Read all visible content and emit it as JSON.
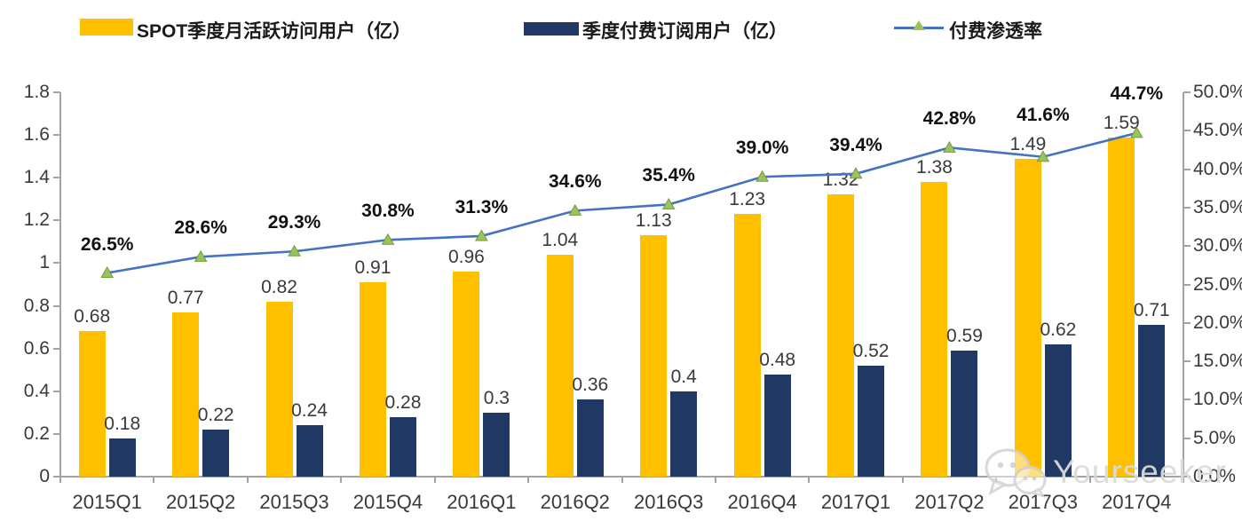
{
  "legend": [
    {
      "label": "SPOT季度月活跃访问用户（亿）",
      "swatch": "bar",
      "color": "#FFC000"
    },
    {
      "label": "季度付费订阅用户（亿）",
      "swatch": "bar",
      "color": "#1F3864"
    },
    {
      "label": "付费渗透率",
      "swatch": "line",
      "color": "#4472C4",
      "marker_color": "#9CC25C"
    }
  ],
  "chart_data": {
    "type": "bar",
    "subtype": "grouped bars with overlay line (dual axis)",
    "categories": [
      "2015Q1",
      "2015Q2",
      "2015Q3",
      "2015Q4",
      "2016Q1",
      "2016Q2",
      "2016Q3",
      "2016Q4",
      "2017Q1",
      "2017Q2",
      "2017Q3",
      "2017Q4"
    ],
    "series": [
      {
        "name": "SPOT季度月活跃访问用户（亿）",
        "type": "bar",
        "axis": "left",
        "color": "#FFC000",
        "values": [
          0.68,
          0.77,
          0.82,
          0.91,
          0.96,
          1.04,
          1.13,
          1.23,
          1.32,
          1.38,
          1.49,
          1.59
        ]
      },
      {
        "name": "季度付费订阅用户（亿）",
        "type": "bar",
        "axis": "left",
        "color": "#1F3864",
        "values": [
          0.18,
          0.22,
          0.24,
          0.28,
          0.3,
          0.36,
          0.4,
          0.48,
          0.52,
          0.59,
          0.62,
          0.71
        ]
      },
      {
        "name": "付费渗透率",
        "type": "line",
        "axis": "right",
        "color": "#4472C4",
        "marker": "triangle",
        "marker_color": "#9CC25C",
        "values": [
          26.5,
          28.6,
          29.3,
          30.8,
          31.3,
          34.6,
          35.4,
          39.0,
          39.4,
          42.8,
          41.6,
          44.7
        ]
      }
    ],
    "left_axis": {
      "range": [
        0,
        1.8
      ],
      "ticks": [
        0,
        0.2,
        0.4,
        0.6,
        0.8,
        1,
        1.2,
        1.4,
        1.6,
        1.8
      ]
    },
    "right_axis": {
      "range": [
        0,
        50
      ],
      "ticks": [
        0,
        5,
        10,
        15,
        20,
        25,
        30,
        35,
        40,
        45,
        50
      ],
      "format": "percent_one_decimal"
    },
    "grid": false,
    "legend_position": "top",
    "data_labels": true
  },
  "watermark": {
    "label": "Yourseeker",
    "icon": "wechat-icon"
  }
}
